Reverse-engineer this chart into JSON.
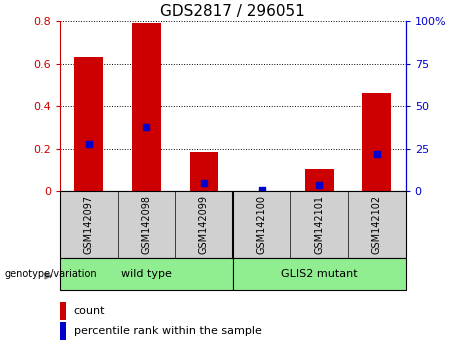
{
  "title": "GDS2817 / 296051",
  "samples": [
    "GSM142097",
    "GSM142098",
    "GSM142099",
    "GSM142100",
    "GSM142101",
    "GSM142102"
  ],
  "count_values": [
    0.63,
    0.79,
    0.185,
    0.0,
    0.105,
    0.46
  ],
  "percentile_values": [
    27.5,
    37.5,
    5.0,
    0.5,
    3.5,
    22.0
  ],
  "left_ylim": [
    0,
    0.8
  ],
  "right_ylim": [
    0,
    100
  ],
  "left_yticks": [
    0,
    0.2,
    0.4,
    0.6,
    0.8
  ],
  "right_yticks": [
    0,
    25,
    50,
    75,
    100
  ],
  "left_yticklabels": [
    "0",
    "0.2",
    "0.4",
    "0.6",
    "0.8"
  ],
  "right_yticklabels": [
    "0",
    "25",
    "50",
    "75",
    "100%"
  ],
  "bar_color": "#cc0000",
  "dot_color": "#0000cc",
  "bar_width": 0.5,
  "dot_size": 18,
  "background_color": "#ffffff",
  "label_area_color": "#d0d0d0",
  "group_area_color": "#90ee90",
  "group_label_color": "#808080"
}
